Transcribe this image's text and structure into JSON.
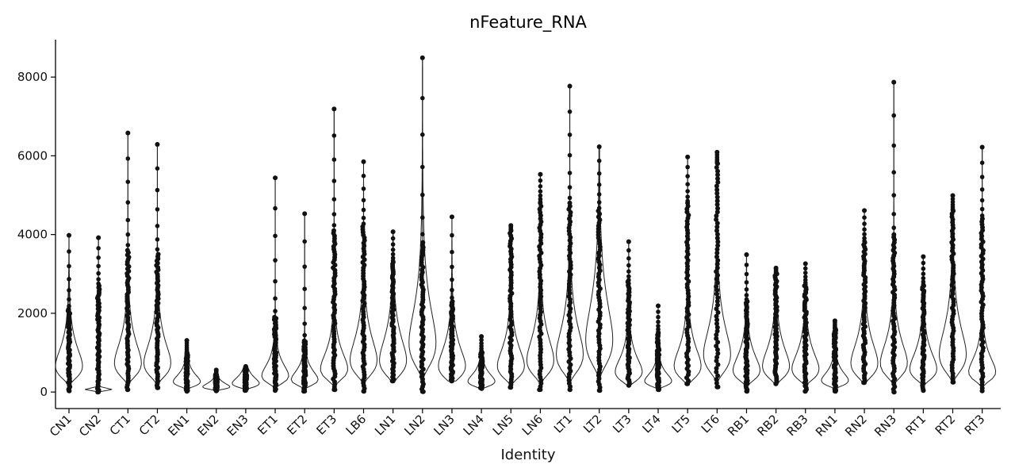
{
  "chart_data": {
    "type": "violin",
    "title": "nFeature_RNA",
    "xlabel": "Identity",
    "ylabel": "",
    "ylim": [
      -420,
      8950
    ],
    "yticks": [
      0,
      2000,
      4000,
      6000,
      8000
    ],
    "ytick_labels": [
      "0",
      "2000",
      "4000",
      "6000",
      "8000"
    ],
    "grid": false,
    "legend": "none",
    "point_color": "#111111",
    "violin_stroke": "#222222",
    "categories": [
      "CN1",
      "CN2",
      "CT1",
      "CT2",
      "EN1",
      "EN2",
      "EN3",
      "ET1",
      "ET2",
      "ET3",
      "LB6",
      "LN1",
      "LN2",
      "LN3",
      "LN4",
      "LN5",
      "LN6",
      "LT1",
      "LT2",
      "LT3",
      "LT4",
      "LT5",
      "LT6",
      "RB1",
      "RB2",
      "RB3",
      "RN1",
      "RN2",
      "RN3",
      "RT1",
      "RT2",
      "RT3"
    ],
    "series": [
      {
        "category": "CN1",
        "min": 30,
        "median": 900,
        "max": 3980,
        "dense_max": 2100
      },
      {
        "category": "CN2",
        "min": 0,
        "median": 60,
        "max": 3920,
        "dense_max": 2700
      },
      {
        "category": "CT1",
        "min": 60,
        "median": 1000,
        "max": 6580,
        "dense_max": 3600
      },
      {
        "category": "CT2",
        "min": 110,
        "median": 1000,
        "max": 6290,
        "dense_max": 3500
      },
      {
        "category": "EN1",
        "min": 20,
        "median": 360,
        "max": 1310,
        "dense_max": 1000
      },
      {
        "category": "EN2",
        "min": 30,
        "median": 180,
        "max": 560,
        "dense_max": 450
      },
      {
        "category": "EN3",
        "min": 40,
        "median": 300,
        "max": 650,
        "dense_max": 600
      },
      {
        "category": "ET1",
        "min": 40,
        "median": 560,
        "max": 5440,
        "dense_max": 1900
      },
      {
        "category": "ET2",
        "min": 20,
        "median": 430,
        "max": 4530,
        "dense_max": 1300
      },
      {
        "category": "ET3",
        "min": 60,
        "median": 800,
        "max": 7190,
        "dense_max": 4100
      },
      {
        "category": "LB6",
        "min": 20,
        "median": 1100,
        "max": 5850,
        "dense_max": 4200
      },
      {
        "category": "LN1",
        "min": 280,
        "median": 1100,
        "max": 4070,
        "dense_max": 3300
      },
      {
        "category": "LN2",
        "min": 10,
        "median": 1700,
        "max": 8490,
        "dense_max": 3800
      },
      {
        "category": "LN3",
        "min": 280,
        "median": 900,
        "max": 4450,
        "dense_max": 2300
      },
      {
        "category": "LN4",
        "min": 90,
        "median": 370,
        "max": 1410,
        "dense_max": 1000
      },
      {
        "category": "LN5",
        "min": 120,
        "median": 900,
        "max": 4230,
        "dense_max": 4100
      },
      {
        "category": "LN6",
        "min": 60,
        "median": 1100,
        "max": 5530,
        "dense_max": 4800
      },
      {
        "category": "LT1",
        "min": 60,
        "median": 1300,
        "max": 7770,
        "dense_max": 4800
      },
      {
        "category": "LT2",
        "min": 40,
        "median": 1800,
        "max": 6230,
        "dense_max": 4600
      },
      {
        "category": "LT3",
        "min": 170,
        "median": 700,
        "max": 3820,
        "dense_max": 2800
      },
      {
        "category": "LT4",
        "min": 60,
        "median": 380,
        "max": 2190,
        "dense_max": 1500
      },
      {
        "category": "LT5",
        "min": 210,
        "median": 900,
        "max": 5970,
        "dense_max": 4800
      },
      {
        "category": "LT6",
        "min": 130,
        "median": 1300,
        "max": 6090,
        "dense_max": 5800
      },
      {
        "category": "RB1",
        "min": 20,
        "median": 750,
        "max": 3490,
        "dense_max": 2300
      },
      {
        "category": "RB2",
        "min": 210,
        "median": 900,
        "max": 3150,
        "dense_max": 3000
      },
      {
        "category": "RB3",
        "min": 20,
        "median": 800,
        "max": 3260,
        "dense_max": 2700
      },
      {
        "category": "RN1",
        "min": 20,
        "median": 400,
        "max": 1810,
        "dense_max": 1600
      },
      {
        "category": "RN2",
        "min": 240,
        "median": 1000,
        "max": 4610,
        "dense_max": 3800
      },
      {
        "category": "RN3",
        "min": 0,
        "median": 1000,
        "max": 7870,
        "dense_max": 4000
      },
      {
        "category": "RT1",
        "min": 40,
        "median": 800,
        "max": 3440,
        "dense_max": 2700
      },
      {
        "category": "RT2",
        "min": 250,
        "median": 1300,
        "max": 4990,
        "dense_max": 4600
      },
      {
        "category": "RT3",
        "min": 30,
        "median": 700,
        "max": 6220,
        "dense_max": 4400
      }
    ]
  }
}
